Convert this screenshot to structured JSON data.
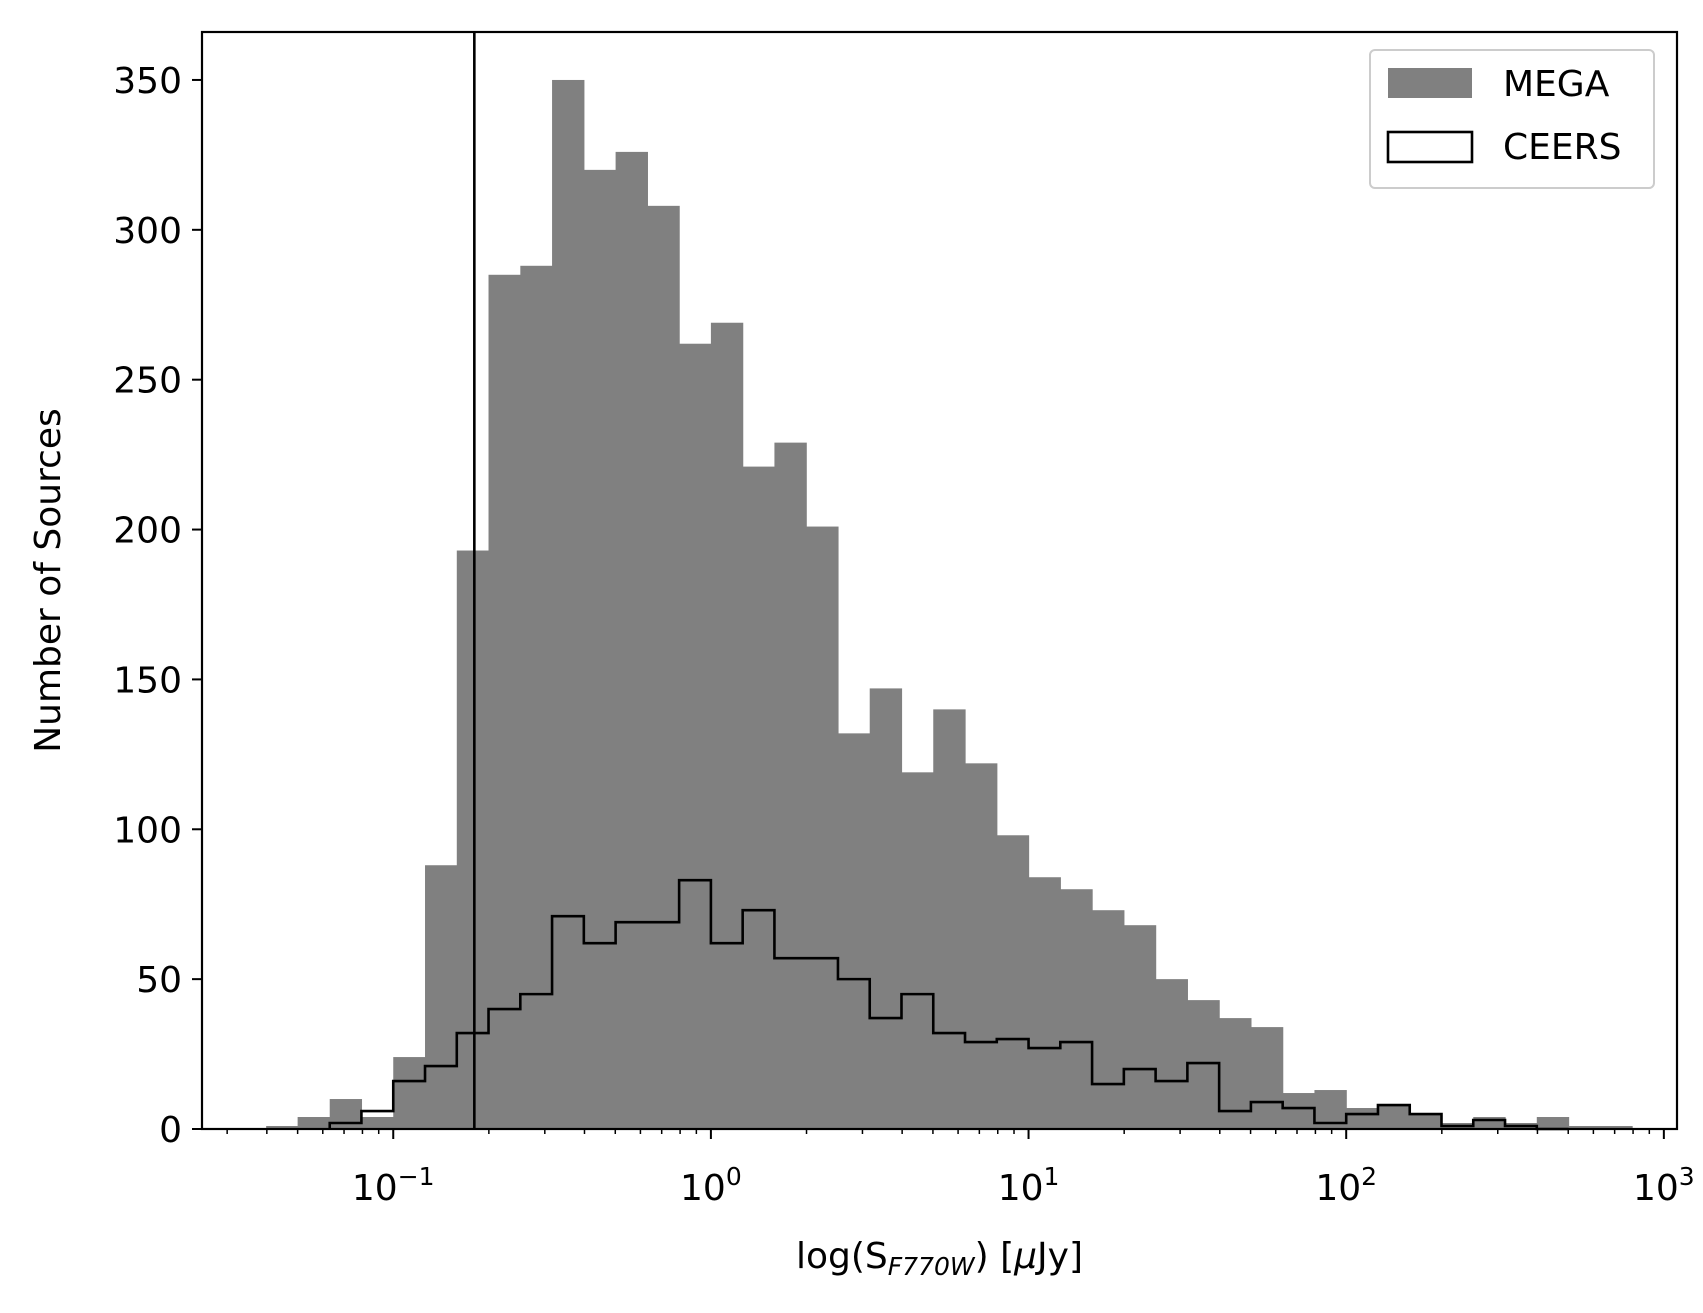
{
  "chart_data": {
    "type": "bar",
    "title": "",
    "xlabel_parts": {
      "pre": "log(S",
      "sub": "F770W",
      "post": ") [",
      "mu": "μ",
      "unit": "Jy]"
    },
    "ylabel": "Number of Sources",
    "x_scale": "log",
    "xlim": [
      0.025,
      1100
    ],
    "ylim": [
      0,
      366
    ],
    "x_ticks": [
      {
        "value": 0.1,
        "base": "10",
        "exp": "−1"
      },
      {
        "value": 1,
        "base": "10",
        "exp": "0"
      },
      {
        "value": 10,
        "base": "10",
        "exp": "1"
      },
      {
        "value": 100,
        "base": "10",
        "exp": "2"
      },
      {
        "value": 1000,
        "base": "10",
        "exp": "3"
      }
    ],
    "y_ticks": [
      {
        "value": 0,
        "label": "0"
      },
      {
        "value": 50,
        "label": "50"
      },
      {
        "value": 100,
        "label": "100"
      },
      {
        "value": 150,
        "label": "150"
      },
      {
        "value": 200,
        "label": "200"
      },
      {
        "value": 250,
        "label": "250"
      },
      {
        "value": 300,
        "label": "300"
      },
      {
        "value": 350,
        "label": "350"
      }
    ],
    "vertical_line_x": 0.18,
    "legend": {
      "position": "upper right",
      "entries": [
        {
          "label": "MEGA",
          "style": "filled",
          "color": "#808080"
        },
        {
          "label": "CEERS",
          "style": "step",
          "color": "#000000"
        }
      ]
    },
    "series": [
      {
        "name": "MEGA",
        "style": "filled",
        "color": "#808080",
        "bin_edges": [
          0.0398,
          0.05,
          0.0631,
          0.0794,
          0.1,
          0.1259,
          0.1585,
          0.1995,
          0.2512,
          0.3162,
          0.3981,
          0.5012,
          0.631,
          0.7943,
          1.0,
          1.2589,
          1.5849,
          1.9953,
          2.5119,
          3.1623,
          3.9811,
          5.0119,
          6.3096,
          7.9433,
          10.0,
          12.589,
          15.849,
          19.953,
          25.119,
          31.623,
          39.811,
          50.119,
          63.096,
          79.433,
          100.0,
          125.89,
          158.49,
          199.53,
          251.19,
          316.23,
          398.11,
          501.19,
          630.96,
          794.33
        ],
        "counts": [
          1,
          4,
          10,
          4,
          24,
          88,
          193,
          285,
          288,
          350,
          320,
          326,
          308,
          262,
          269,
          221,
          229,
          201,
          132,
          147,
          119,
          140,
          122,
          98,
          84,
          80,
          73,
          68,
          50,
          43,
          37,
          34,
          12,
          13,
          7,
          8,
          5,
          2,
          4,
          2,
          4,
          1,
          1
        ]
      },
      {
        "name": "CEERS",
        "style": "step",
        "color": "#000000",
        "bin_edges": [
          0.0631,
          0.0794,
          0.1,
          0.1259,
          0.1585,
          0.1995,
          0.2512,
          0.3162,
          0.3981,
          0.5012,
          0.631,
          0.7943,
          1.0,
          1.2589,
          1.5849,
          1.9953,
          2.5119,
          3.1623,
          3.9811,
          5.0119,
          6.3096,
          7.9433,
          10.0,
          12.589,
          15.849,
          19.953,
          25.119,
          31.623,
          39.811,
          50.119,
          63.096,
          79.433,
          100.0,
          125.89,
          158.49,
          199.53,
          251.19,
          316.23,
          398.11,
          501.19
        ],
        "counts": [
          2,
          6,
          16,
          21,
          32,
          40,
          45,
          71,
          62,
          69,
          69,
          83,
          62,
          73,
          57,
          57,
          50,
          37,
          45,
          32,
          29,
          30,
          27,
          29,
          15,
          20,
          16,
          22,
          6,
          9,
          7,
          2,
          5,
          8,
          5,
          1,
          3,
          1,
          0
        ]
      }
    ]
  }
}
